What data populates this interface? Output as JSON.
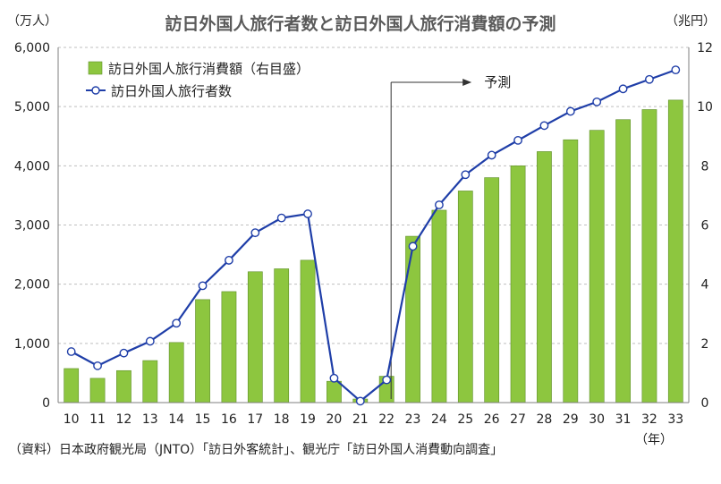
{
  "chart_data": {
    "type": "bar+line",
    "title": "訪日外国人旅行者数と訪日外国人旅行消費額の予測",
    "ylabel_left": "（万人）",
    "ylabel_right": "（兆円）",
    "xlabel": "（年）",
    "source": "（資料）日本政府観光局（JNTO）「訪日外客統計」、観光庁「訪日外国人消費動向調査」",
    "forecast_label": "予測",
    "forecast_start_category": "22",
    "categories": [
      "10",
      "11",
      "12",
      "13",
      "14",
      "15",
      "16",
      "17",
      "18",
      "19",
      "20",
      "21",
      "22",
      "23",
      "24",
      "25",
      "26",
      "27",
      "28",
      "29",
      "30",
      "31",
      "32",
      "33"
    ],
    "y_left": {
      "min": 0,
      "max": 6000,
      "ticks": [
        "0",
        "1,000",
        "2,000",
        "3,000",
        "4,000",
        "5,000",
        "6,000"
      ],
      "tick_values": [
        0,
        1000,
        2000,
        3000,
        4000,
        5000,
        6000
      ]
    },
    "y_right": {
      "min": 0,
      "max": 12,
      "ticks": [
        "0",
        "2",
        "4",
        "6",
        "8",
        "10",
        "12"
      ],
      "tick_values": [
        0,
        2,
        4,
        6,
        8,
        10,
        12
      ]
    },
    "grid": true,
    "legend_position": "top-left",
    "series": [
      {
        "name": "訪日外国人旅行消費額（右目盛）",
        "type": "bar",
        "axis": "right",
        "color": "#8dc63f",
        "values": [
          1.15,
          0.82,
          1.08,
          1.42,
          2.03,
          3.48,
          3.75,
          4.42,
          4.52,
          4.81,
          0.72,
          0.12,
          0.89,
          5.62,
          6.5,
          7.15,
          7.6,
          8.0,
          8.48,
          8.88,
          9.2,
          9.56,
          9.9,
          10.22
        ]
      },
      {
        "name": "訪日外国人旅行者数",
        "type": "line",
        "axis": "left",
        "color": "#1f3ea8",
        "values": [
          861,
          622,
          836,
          1036,
          1341,
          1974,
          2404,
          2869,
          3119,
          3188,
          412,
          25,
          383,
          2640,
          3340,
          3850,
          4180,
          4430,
          4680,
          4920,
          5080,
          5300,
          5460,
          5620
        ]
      }
    ]
  }
}
